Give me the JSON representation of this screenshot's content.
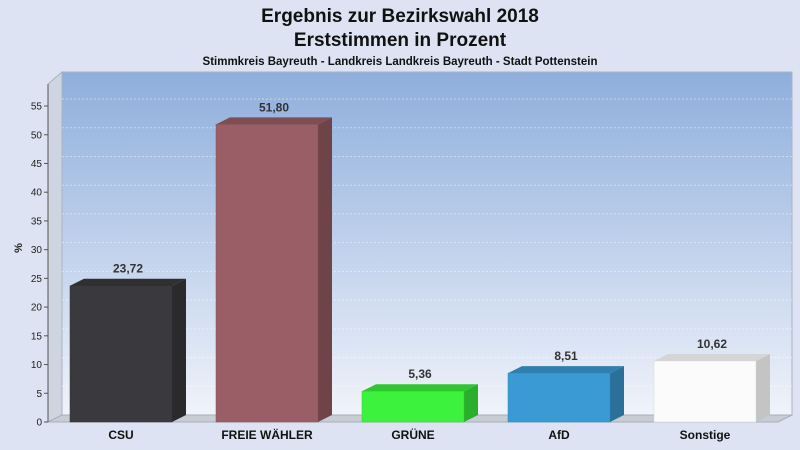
{
  "chart_data": {
    "type": "bar",
    "title": "Ergebnis zur Bezirkswahl 2018",
    "title_line2": "Erststimmen in Prozent",
    "subtitle": "Stimmkreis Bayreuth - Landkreis Landkreis Bayreuth - Stadt Pottenstein",
    "ylabel": "%",
    "xlabel": "",
    "ylim": [
      0,
      58
    ],
    "yticks": [
      0,
      5,
      10,
      15,
      20,
      25,
      30,
      35,
      40,
      45,
      50,
      55
    ],
    "grid": true,
    "categories": [
      "CSU",
      "FREIE WÄHLER",
      "GRÜNE",
      "AfD",
      "Sonstige"
    ],
    "values": [
      23.72,
      51.8,
      5.36,
      8.51,
      10.62
    ],
    "value_labels": [
      "23,72",
      "51,80",
      "5,36",
      "8,51",
      "10,62"
    ],
    "colors": [
      "#3a3a3e",
      "#9a5f66",
      "#3cf23c",
      "#3a9bd4",
      "#fbfbfb"
    ],
    "background_gradient": [
      "#8eaedc",
      "#f0f3fa"
    ]
  }
}
